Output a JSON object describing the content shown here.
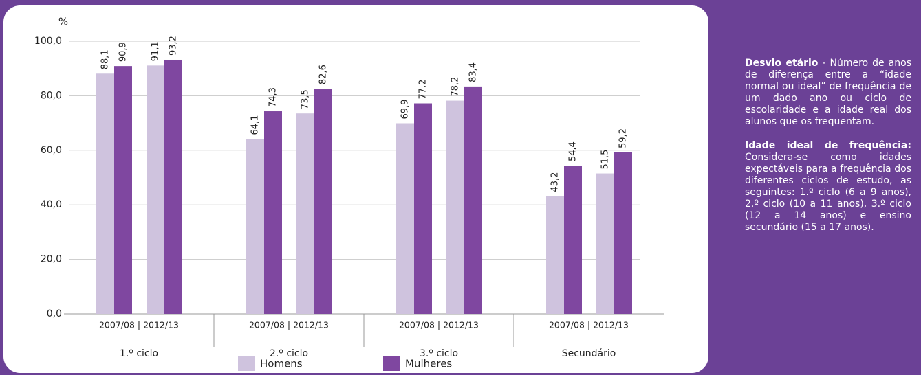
{
  "chart_data": {
    "type": "grouped-bar",
    "y_label": "%",
    "categories": [
      "1.º ciclo",
      "2.º ciclo",
      "3.º ciclo",
      "Secundário"
    ],
    "period_labels": [
      "2007/08 | 2012/13",
      "2007/08 | 2012/13",
      "2007/08 | 2012/13",
      "2007/08 | 2012/13"
    ],
    "series": [
      {
        "name": "Homens",
        "color": "#cfc3de",
        "values": [
          [
            88.1,
            91.1
          ],
          [
            64.1,
            73.5
          ],
          [
            69.9,
            78.2
          ],
          [
            43.2,
            51.5
          ]
        ],
        "value_labels": [
          [
            "88,1",
            "91,1"
          ],
          [
            "64,1",
            "73,5"
          ],
          [
            "69,9",
            "78,2"
          ],
          [
            "43,2",
            "51,5"
          ]
        ]
      },
      {
        "name": "Mulheres",
        "color": "#7f47a0",
        "values": [
          [
            90.9,
            93.2
          ],
          [
            74.3,
            82.6
          ],
          [
            77.2,
            83.4
          ],
          [
            54.4,
            59.2
          ]
        ],
        "value_labels": [
          [
            "90,9",
            "93,2"
          ],
          [
            "74,3",
            "82,6"
          ],
          [
            "77,2",
            "83,4"
          ],
          [
            "54,4",
            "59,2"
          ]
        ]
      }
    ],
    "ylim": [
      0,
      100
    ],
    "yticks": [
      {
        "value": 0,
        "label": "0,0"
      },
      {
        "value": 20,
        "label": "20,0"
      },
      {
        "value": 40,
        "label": "40,0"
      },
      {
        "value": 60,
        "label": "60,0"
      },
      {
        "value": 80,
        "label": "80,0"
      },
      {
        "value": 100,
        "label": "100,0"
      }
    ],
    "grid": true,
    "legend": "bottom"
  },
  "sidebar": [
    {
      "term": "Desvio etário",
      "text": " - Número de anos de diferença entre a “idade normal ou ideal” de frequência de um dado ano ou ciclo de escolaridade e a idade real dos alunos que os frequentam."
    },
    {
      "term": "Idade ideal de frequência:",
      "text": " Considera-se como idades expectáveis para a frequência dos diferentes ciclos de estudo, as seguintes: 1.º ciclo (6 a 9 anos), 2.º ciclo (10 a 11 anos), 3.º ciclo (12 a 14 anos) e ensino secundário (15 a 17 anos)."
    }
  ]
}
